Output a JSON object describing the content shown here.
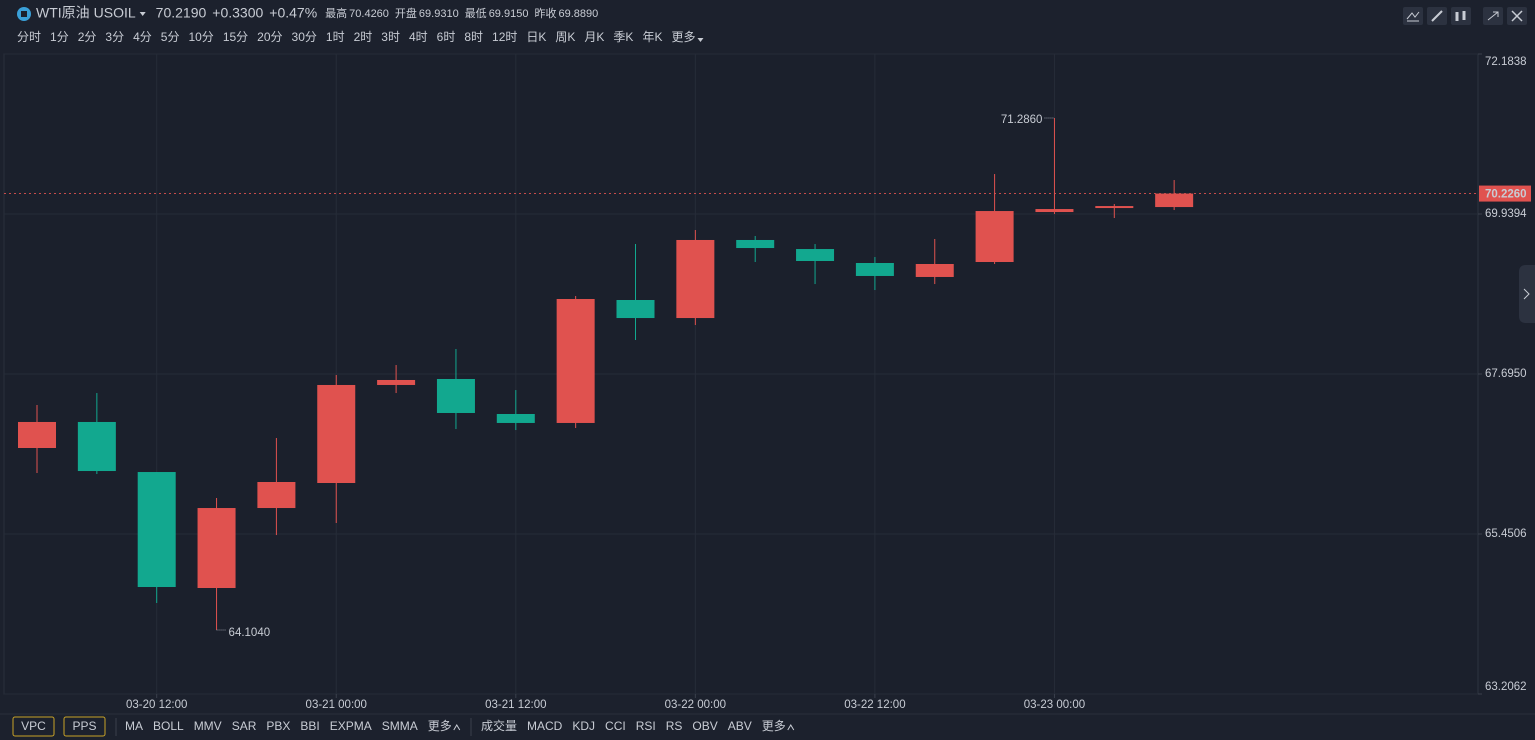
{
  "header": {
    "name": "WTI原油",
    "code": "USOIL",
    "price": "70.2190",
    "change": "+0.3300",
    "change_pct": "+0.47%",
    "stats": [
      {
        "label": "最高",
        "value": "70.4260"
      },
      {
        "label": "开盘",
        "value": "69.9310"
      },
      {
        "label": "最低",
        "value": "69.9150"
      },
      {
        "label": "昨收",
        "value": "69.8890"
      }
    ]
  },
  "timeframes": [
    "分时",
    "1分",
    "2分",
    "3分",
    "4分",
    "5分",
    "10分",
    "15分",
    "20分",
    "30分",
    "1时",
    "2时",
    "3时",
    "4时",
    "6时",
    "8时",
    "12时",
    "日K",
    "周K",
    "月K",
    "季K",
    "年K",
    "更多"
  ],
  "active_timeframe": 13,
  "toolbar": {
    "boxes": [
      "VPC",
      "PPS"
    ],
    "main_indicators": [
      "MA",
      "BOLL",
      "MMV",
      "SAR",
      "PBX",
      "BBI",
      "EXPMA",
      "SMMA",
      "更多"
    ],
    "sub_indicators": [
      "成交量",
      "MACD",
      "KDJ",
      "CCI",
      "RSI",
      "RS",
      "OBV",
      "ABV",
      "更多"
    ]
  },
  "chart_data": {
    "type": "candlestick",
    "categories": [
      null,
      null,
      "03-20 12:00",
      null,
      null,
      "03-21 00:00",
      null,
      null,
      "03-21 12:00",
      null,
      null,
      "03-22 00:00",
      null,
      null,
      "03-22 12:00",
      null,
      null,
      "03-23 00:00",
      null,
      null
    ],
    "open": [
      66.657,
      67.022,
      66.32,
      64.693,
      65.815,
      66.166,
      67.541,
      67.625,
      67.134,
      67.008,
      68.733,
      68.48,
      69.575,
      69.448,
      69.252,
      69.056,
      69.266,
      69.967,
      70.023,
      70.037
    ],
    "high": [
      67.26,
      67.428,
      66.32,
      65.956,
      66.797,
      67.681,
      67.821,
      68.046,
      67.47,
      68.789,
      69.518,
      69.715,
      69.631,
      69.518,
      69.336,
      69.589,
      70.5,
      71.286,
      70.08,
      70.416
    ],
    "low": [
      66.306,
      66.292,
      64.483,
      64.104,
      65.436,
      65.605,
      67.428,
      66.923,
      66.909,
      66.937,
      68.172,
      68.382,
      69.266,
      68.957,
      68.873,
      68.957,
      69.238,
      69.939,
      69.883,
      69.995
    ],
    "close": [
      67.022,
      66.334,
      64.707,
      65.815,
      66.18,
      67.541,
      67.611,
      67.148,
      67.008,
      68.747,
      68.48,
      69.575,
      69.462,
      69.28,
      69.07,
      69.238,
      69.981,
      70.009,
      70.051,
      70.226
    ],
    "up_color": "#e0524f",
    "down_color": "#12a88f",
    "ylim": [
      63.2062,
      72.1838
    ],
    "yticks": [
      63.2062,
      {
        "value": 65.4506,
        "label": "65.4506"
      },
      {
        "value": 67.695,
        "label": "67.6950"
      },
      69.9394,
      72.1838
    ],
    "last_price": {
      "value": 70.226,
      "label": "70.2260"
    },
    "annotations": [
      {
        "value": 71.286,
        "label": "71.2860",
        "kind": "high"
      },
      {
        "value": 64.104,
        "label": "64.1040",
        "kind": "low"
      }
    ],
    "grid": true
  }
}
